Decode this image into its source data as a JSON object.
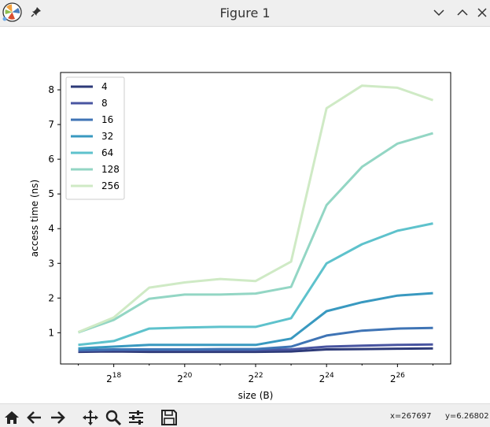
{
  "window": {
    "title": "Figure 1"
  },
  "icons": {
    "app": "matplotlib-logo-icon",
    "pin": "pin-icon",
    "minimize": "chevron-down-icon",
    "maximize": "chevron-up-icon",
    "close": "close-icon"
  },
  "toolbar": {
    "buttons": [
      "home-icon",
      "back-arrow-icon",
      "forward-arrow-icon",
      "pan-icon",
      "zoom-icon",
      "configure-subplots-icon",
      "save-icon"
    ],
    "x_readout": "x=267697",
    "y_readout": "y=6.26802"
  },
  "chart_data": {
    "type": "line",
    "xlabel": "size (B)",
    "ylabel": "access time (ns)",
    "x_scale": "log2",
    "x_exponents": [
      17,
      18,
      19,
      20,
      21,
      22,
      23,
      24,
      25,
      26,
      27
    ],
    "xlim_exp": [
      16.5,
      27.5
    ],
    "ylim": [
      0.1,
      8.5
    ],
    "xticks_exp": [
      18,
      20,
      22,
      24,
      26
    ],
    "yticks": [
      1,
      2,
      3,
      4,
      5,
      6,
      7,
      8
    ],
    "legend_position": "upper-left",
    "grid": false,
    "series": [
      {
        "name": "4",
        "color": "#2d3a78",
        "values": [
          0.45,
          0.46,
          0.45,
          0.45,
          0.45,
          0.45,
          0.46,
          0.52,
          0.53,
          0.54,
          0.55
        ]
      },
      {
        "name": "8",
        "color": "#4955a1",
        "values": [
          0.48,
          0.5,
          0.5,
          0.5,
          0.5,
          0.5,
          0.52,
          0.6,
          0.63,
          0.65,
          0.66
        ]
      },
      {
        "name": "16",
        "color": "#3f74b5",
        "values": [
          0.5,
          0.52,
          0.52,
          0.52,
          0.53,
          0.53,
          0.6,
          0.92,
          1.06,
          1.12,
          1.14
        ]
      },
      {
        "name": "32",
        "color": "#3999c0",
        "values": [
          0.55,
          0.6,
          0.65,
          0.65,
          0.65,
          0.65,
          0.83,
          1.62,
          1.88,
          2.07,
          2.14
        ]
      },
      {
        "name": "64",
        "color": "#5ec2cc",
        "values": [
          0.65,
          0.76,
          1.12,
          1.15,
          1.17,
          1.17,
          1.42,
          3.0,
          3.55,
          3.94,
          4.15
        ]
      },
      {
        "name": "128",
        "color": "#93d6c4",
        "values": [
          1.01,
          1.37,
          1.98,
          2.1,
          2.1,
          2.13,
          2.32,
          4.68,
          5.78,
          6.45,
          6.75
        ]
      },
      {
        "name": "256",
        "color": "#cfeac5",
        "values": [
          1.02,
          1.44,
          2.3,
          2.45,
          2.55,
          2.49,
          3.05,
          7.47,
          8.12,
          8.06,
          7.7
        ]
      }
    ]
  }
}
